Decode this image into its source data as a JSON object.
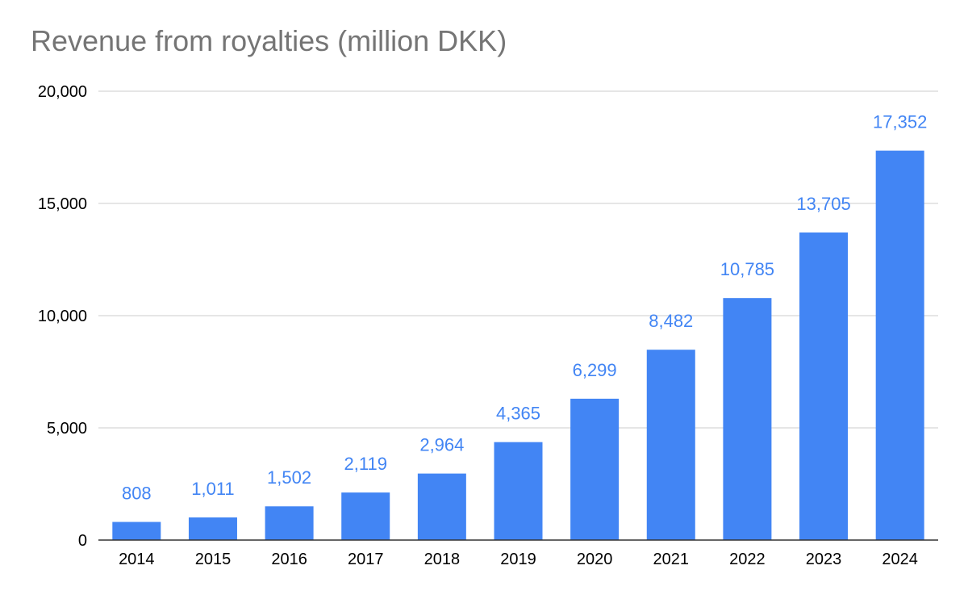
{
  "chart_data": {
    "type": "bar",
    "title": "Revenue from royalties (million DKK)",
    "xlabel": "",
    "ylabel": "",
    "categories": [
      "2014",
      "2015",
      "2016",
      "2017",
      "2018",
      "2019",
      "2020",
      "2021",
      "2022",
      "2023",
      "2024"
    ],
    "values": [
      808,
      1011,
      1502,
      2119,
      2964,
      4365,
      6299,
      8482,
      10785,
      13705,
      17352
    ],
    "data_labels": [
      "808",
      "1,011",
      "1,502",
      "2,119",
      "2,964",
      "4,365",
      "6,299",
      "8,482",
      "10,785",
      "13,705",
      "17,352"
    ],
    "ylim": [
      0,
      20000
    ],
    "yticks": [
      0,
      5000,
      10000,
      15000,
      20000
    ],
    "ytick_labels": [
      "0",
      "5,000",
      "10,000",
      "15,000",
      "20,000"
    ],
    "grid": true,
    "legend": "none",
    "colors": {
      "bar": "#4285f4",
      "data_label": "#4285f4",
      "title": "#757575",
      "grid": "#cccccc",
      "axis": "#333333"
    }
  }
}
